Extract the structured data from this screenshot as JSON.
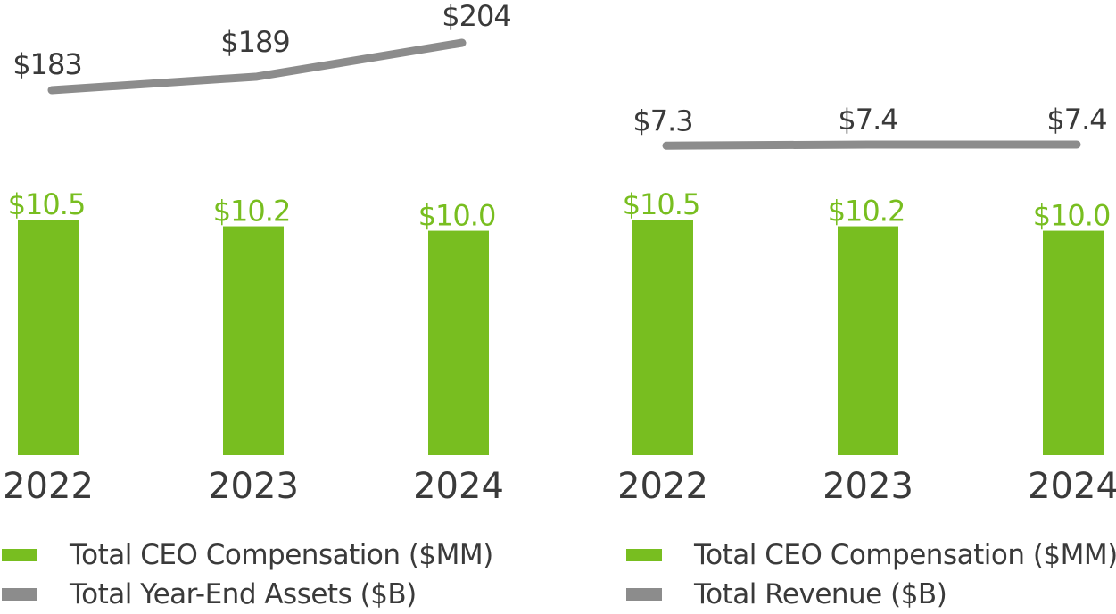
{
  "colors": {
    "bar": "#78BE20",
    "bar_label": "#78BE20",
    "line": "#8C8C8C",
    "line_label": "#3A3A3A",
    "axis_label": "#3A3A3A"
  },
  "chart_data": [
    {
      "type": "bar+line",
      "title": "",
      "categories": [
        "2022",
        "2023",
        "2024"
      ],
      "series": [
        {
          "name": "Total CEO Compensation ($MM)",
          "kind": "bar",
          "values": [
            10.5,
            10.2,
            10.0
          ],
          "labels": [
            "$10.5",
            "$10.2",
            "$10.0"
          ]
        },
        {
          "name": "Total Year-End Assets ($B)",
          "kind": "line",
          "values": [
            183,
            189,
            204
          ],
          "labels": [
            "$183",
            "$189",
            "$204"
          ]
        }
      ],
      "bar_ylim": [
        0,
        10.5
      ],
      "line_ylim": [
        120,
        204
      ],
      "legend": [
        "Total CEO Compensation ($MM)",
        "Total Year-End Assets ($B)"
      ]
    },
    {
      "type": "bar+line",
      "title": "",
      "categories": [
        "2022",
        "2023",
        "2024"
      ],
      "series": [
        {
          "name": "Total CEO Compensation ($MM)",
          "kind": "bar",
          "values": [
            10.5,
            10.2,
            10.0
          ],
          "labels": [
            "$10.5",
            "$10.2",
            "$10.0"
          ]
        },
        {
          "name": "Total Revenue ($B)",
          "kind": "line",
          "values": [
            7.3,
            7.4,
            7.4
          ],
          "labels": [
            "$7.3",
            "$7.4",
            "$7.4"
          ]
        }
      ],
      "bar_ylim": [
        0,
        10.5
      ],
      "line_ylim": [
        0,
        16
      ],
      "legend": [
        "Total CEO Compensation ($MM)",
        "Total Revenue ($B)"
      ]
    }
  ]
}
